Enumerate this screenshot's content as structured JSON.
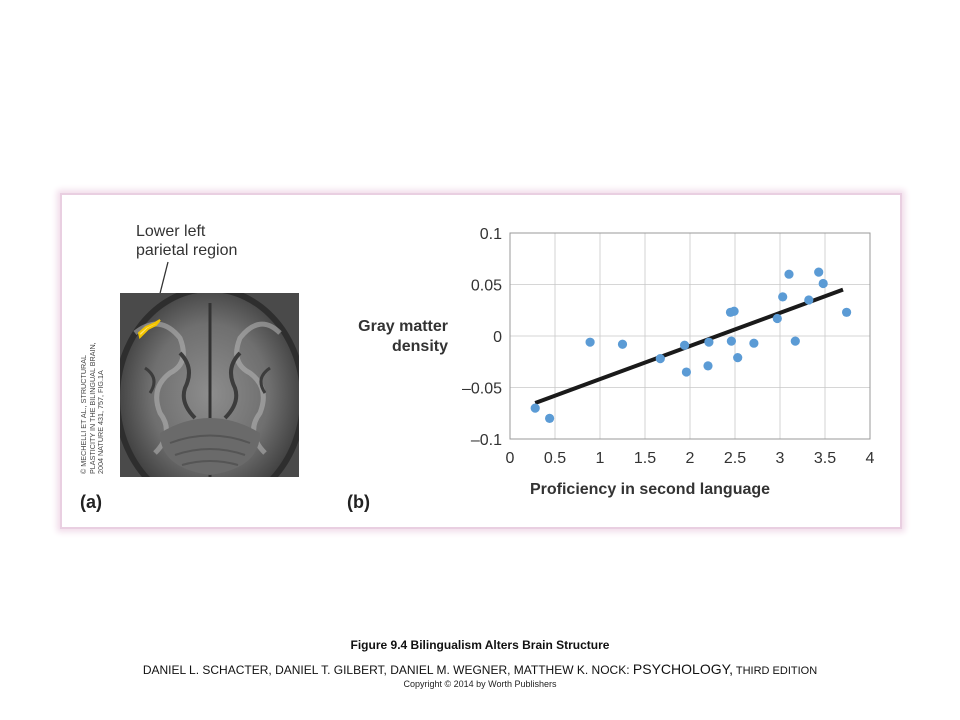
{
  "panel_a": {
    "label": "(a)",
    "region_label_lines": [
      "Lower left",
      "parietal region"
    ],
    "credit_lines": [
      "© MECHELLI ET AL., STRUCTURAL",
      "PLASTICITY IN THE BILINGUAL BRAIN,",
      "2004 NATURE 431, 757, FIG.1A"
    ]
  },
  "panel_b": {
    "label": "(b)",
    "ylabel_lines": [
      "Gray matter",
      "density"
    ]
  },
  "caption": {
    "title": "Figure 9.4 Bilingualism Alters Brain Structure",
    "authors": "DANIEL L. SCHACTER, DANIEL T. GILBERT, DANIEL M. WEGNER, MATTHEW K. NOCK: ",
    "book": "PSYCHOLOGY,",
    "edition": " THIRD EDITION",
    "copyright": "Copyright © 2014 by Worth Publishers"
  },
  "chart_data": {
    "type": "scatter",
    "title": "",
    "xlabel": "Proficiency in second language",
    "ylabel": "Gray matter density",
    "xlim": [
      0,
      4
    ],
    "ylim": [
      -0.1,
      0.1
    ],
    "x_ticks": [
      0,
      0.5,
      1,
      1.5,
      2,
      2.5,
      3,
      3.5,
      4
    ],
    "x_tick_labels": [
      "0",
      "0.5",
      "1",
      "1.5",
      "2",
      "2.5",
      "3",
      "3.5",
      "4"
    ],
    "y_ticks": [
      0.1,
      0.05,
      0,
      -0.05,
      -0.1
    ],
    "y_tick_labels": [
      "0.1",
      "0.05",
      "0",
      "–0.05",
      "–0.1"
    ],
    "grid": true,
    "point_color": "#5b9bd5",
    "line_color": "#1a1a1a",
    "points": [
      {
        "x": 0.28,
        "y": -0.07
      },
      {
        "x": 0.44,
        "y": -0.08
      },
      {
        "x": 0.89,
        "y": -0.006
      },
      {
        "x": 1.25,
        "y": -0.008
      },
      {
        "x": 1.67,
        "y": -0.022
      },
      {
        "x": 1.94,
        "y": -0.009
      },
      {
        "x": 1.96,
        "y": -0.035
      },
      {
        "x": 2.2,
        "y": -0.029
      },
      {
        "x": 2.21,
        "y": -0.006
      },
      {
        "x": 2.45,
        "y": 0.023
      },
      {
        "x": 2.46,
        "y": -0.005
      },
      {
        "x": 2.49,
        "y": 0.024
      },
      {
        "x": 2.53,
        "y": -0.021
      },
      {
        "x": 2.71,
        "y": -0.007
      },
      {
        "x": 2.97,
        "y": 0.017
      },
      {
        "x": 3.03,
        "y": 0.038
      },
      {
        "x": 3.1,
        "y": 0.06
      },
      {
        "x": 3.17,
        "y": -0.005
      },
      {
        "x": 3.32,
        "y": 0.035
      },
      {
        "x": 3.43,
        "y": 0.062
      },
      {
        "x": 3.48,
        "y": 0.051
      },
      {
        "x": 3.74,
        "y": 0.023
      }
    ],
    "trend_line": {
      "x": [
        0.28,
        3.7
      ],
      "y": [
        -0.065,
        0.045
      ]
    }
  }
}
